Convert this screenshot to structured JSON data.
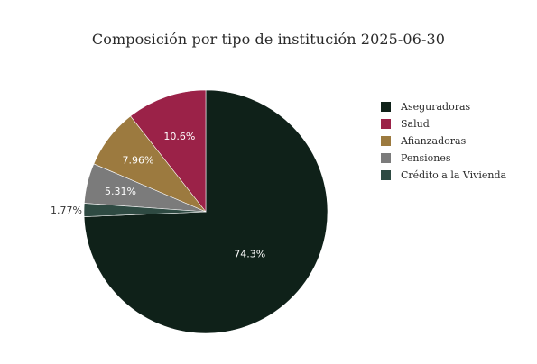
{
  "chart_data": {
    "type": "pie",
    "title": "Composición por tipo de institución 2025-06-30",
    "slices": [
      {
        "name": "Aseguradoras",
        "value": 74.3,
        "label": "74.3%",
        "color": "#0f2119"
      },
      {
        "name": "Salud",
        "value": 10.6,
        "label": "10.6%",
        "color": "#9b2248"
      },
      {
        "name": "Afianzadoras",
        "value": 7.96,
        "label": "7.96%",
        "color": "#9c7a3f"
      },
      {
        "name": "Pensiones",
        "value": 5.31,
        "label": "5.31%",
        "color": "#7b7b7b"
      },
      {
        "name": "Crédito a la Vivienda",
        "value": 1.77,
        "label": "1.77%",
        "color": "#2e4a42"
      }
    ],
    "legend_position": "right"
  }
}
